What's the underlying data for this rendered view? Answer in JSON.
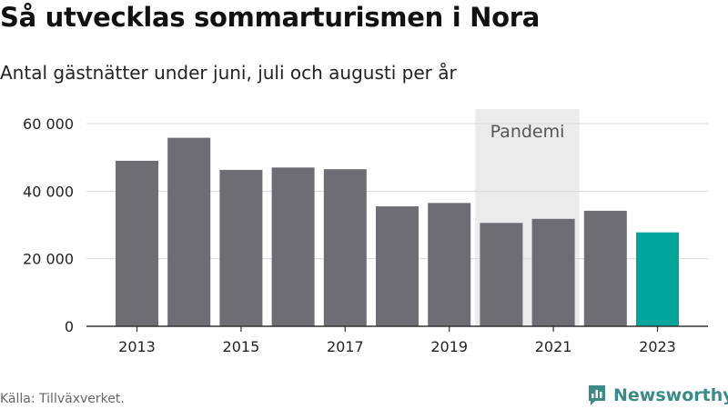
{
  "title": "Så utvecklas sommarturismen i Nora",
  "subtitle": "Antal gästnätter under juni, juli och augusti per år",
  "source": "Källa: Tillväxverket.",
  "brand": {
    "name": "Newsworthy",
    "icon": "newsworthy-logo-icon"
  },
  "colors": {
    "bar": "#6e6d73",
    "highlight": "#00a49a",
    "band": "#ebebeb",
    "grid": "#d9d9d9",
    "axis": "#333333"
  },
  "chart_data": {
    "type": "bar",
    "categories": [
      "2013",
      "2014",
      "2015",
      "2016",
      "2017",
      "2018",
      "2019",
      "2020",
      "2021",
      "2022",
      "2023"
    ],
    "values": [
      49000,
      55800,
      46300,
      47000,
      46500,
      35500,
      36500,
      30600,
      31800,
      34200,
      27800
    ],
    "highlight_category": "2023",
    "xticks": [
      "2013",
      "2015",
      "2017",
      "2019",
      "2021",
      "2023"
    ],
    "yticks": [
      0,
      20000,
      40000,
      60000
    ],
    "ytick_labels": [
      "0",
      "20 000",
      "40 000",
      "60 000"
    ],
    "ylim": [
      0,
      65000
    ],
    "grid": true,
    "annotation": {
      "label": "Pandemi",
      "from": "2020",
      "to": "2021"
    }
  }
}
